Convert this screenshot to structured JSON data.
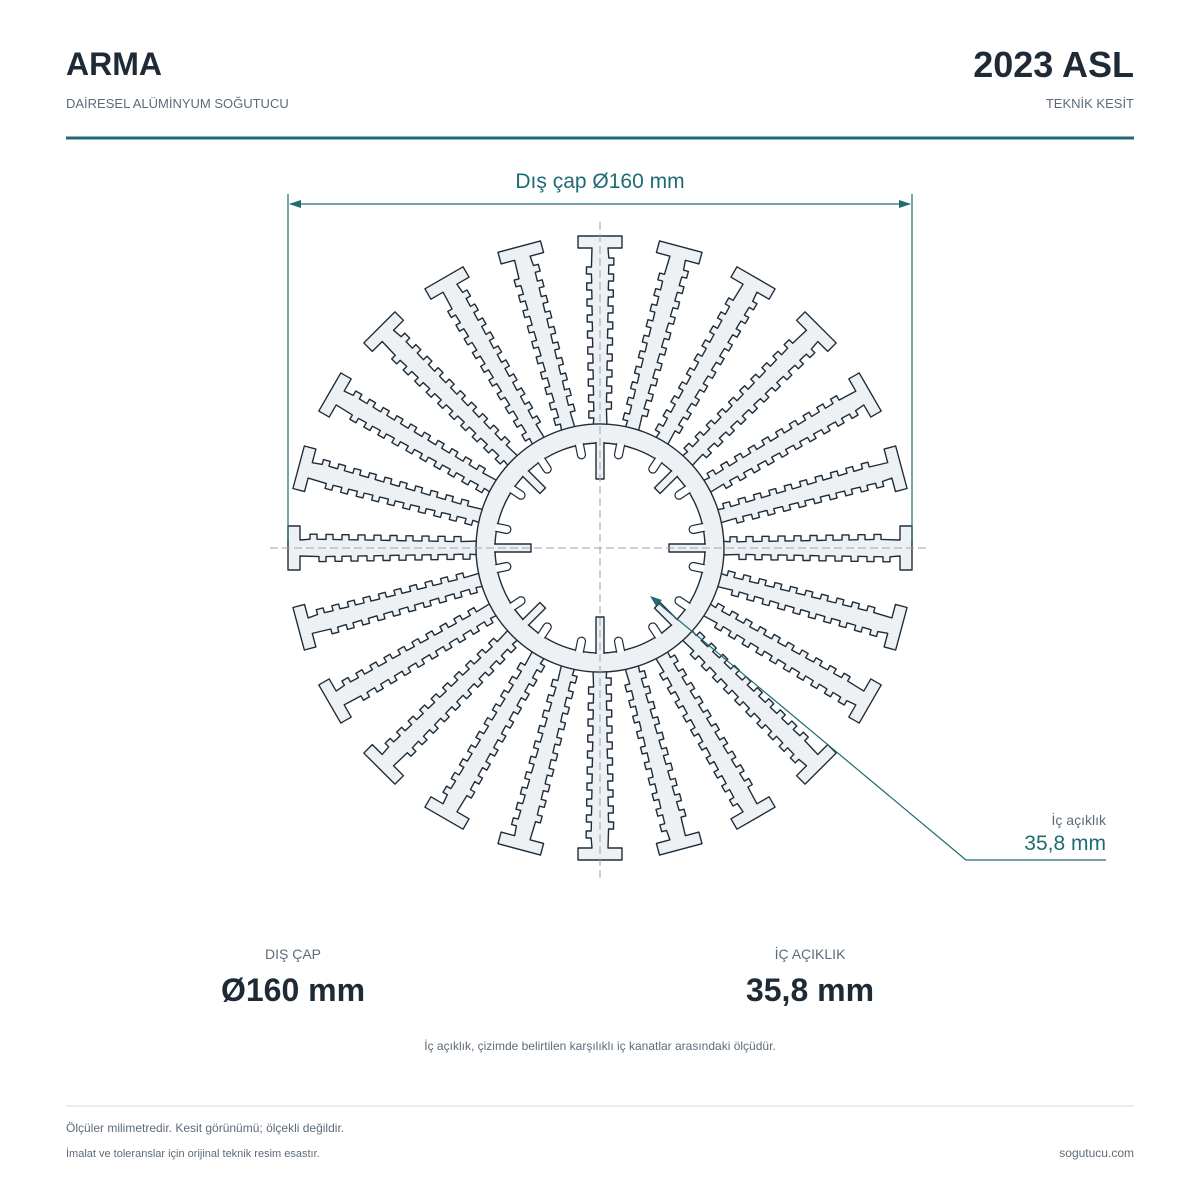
{
  "header": {
    "title": "ARMA",
    "subtitle": "DAİRESEL ALÜMİNYUM SOĞUTUCU",
    "code": "2023 ASL",
    "view": "TEKNİK KESİT"
  },
  "drawing": {
    "outer_dimension": "Dış çap Ø160 mm",
    "inner_callout": {
      "label": "İç açıklık",
      "value": "35,8 mm"
    }
  },
  "specs": [
    {
      "label": "DIŞ ÇAP",
      "value": "Ø160 mm"
    },
    {
      "label": "İÇ AÇIKLIK",
      "value": "35,8 mm"
    }
  ],
  "note": "İç açıklık, çizimde belirtilen karşılıklı iç kanatlar arasındaki ölçüdür.",
  "footer": {
    "line1": "Ölçüler milimetredir. Kesit görünümü; ölçekli değildir.",
    "line2": "İmalat ve toleranslar için orijinal teknik resim esastır.",
    "site": "sogutucu.com"
  }
}
